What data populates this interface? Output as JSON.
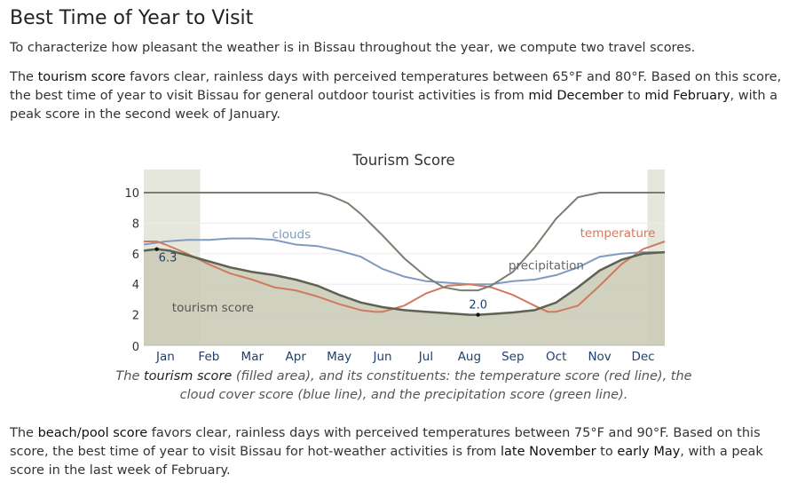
{
  "title": "Best Time of Year to Visit",
  "intro": "To characterize how pleasant the weather is in Bissau throughout the year, we compute two travel scores.",
  "tourism": {
    "p1": "The ",
    "term": "tourism score",
    "p2": " favors clear, rainless days with perceived temperatures between 65°F and 80°F. Based on this score, the best time of year to visit Bissau for general outdoor tourist activities is from ",
    "start": "mid December",
    "p3": " to ",
    "end": "mid February",
    "p4": ", with a peak score in the second week of January."
  },
  "caption": {
    "p1": "The ",
    "term": "tourism score",
    "p2": " (filled area), and its constituents: the temperature score (red line), the cloud cover score (blue line), and the precipitation score (green line)."
  },
  "beach": {
    "p1": "The ",
    "term": "beach/pool score",
    "p2": " favors clear, rainless days with perceived temperatures between 75°F and 90°F. Based on this score, the best time of year to visit Bissau for hot-weather activities is from ",
    "start": "late November",
    "p3": " to ",
    "end": "early May",
    "p4": ", with a peak score in the last week of February."
  },
  "chart_data": {
    "type": "area",
    "title": "Tourism Score",
    "xlabel": "",
    "ylabel": "",
    "ylim": [
      0,
      10
    ],
    "yticks": [
      0,
      2,
      4,
      6,
      8,
      10
    ],
    "x_range": [
      0,
      12
    ],
    "months": [
      "Jan",
      "Feb",
      "Mar",
      "Apr",
      "May",
      "Jun",
      "Jul",
      "Aug",
      "Sep",
      "Oct",
      "Nov",
      "Dec"
    ],
    "best_periods": [
      [
        0,
        1.3
      ],
      [
        11.6,
        12
      ]
    ],
    "colors": {
      "score_fill": "#c9c9b5",
      "score_line": "#5d6253",
      "temperature": "#d07a60",
      "clouds": "#7f9bbf",
      "precipitation": "#7a7e70",
      "best_band": "#e6e7dc"
    },
    "series": [
      {
        "name": "tourism score",
        "x": [
          0,
          0.3,
          0.6,
          1.0,
          1.5,
          2.0,
          2.5,
          3.0,
          3.5,
          4.0,
          4.5,
          5.0,
          5.5,
          6.0,
          6.5,
          7.0,
          7.5,
          7.7,
          8.0,
          8.5,
          9.0,
          9.5,
          10.0,
          10.5,
          11.0,
          11.5,
          12.0
        ],
        "y": [
          6.2,
          6.3,
          6.2,
          5.9,
          5.5,
          5.1,
          4.8,
          4.6,
          4.3,
          3.9,
          3.3,
          2.8,
          2.5,
          2.3,
          2.2,
          2.1,
          2.0,
          2.0,
          2.05,
          2.15,
          2.3,
          2.8,
          3.8,
          4.9,
          5.6,
          6.0,
          6.1
        ]
      },
      {
        "name": "temperature",
        "x": [
          0,
          0.3,
          0.5,
          1.0,
          1.5,
          2.0,
          2.5,
          3.0,
          3.5,
          4.0,
          4.5,
          5.0,
          5.3,
          5.5,
          6.0,
          6.5,
          7.0,
          7.5,
          8.0,
          8.5,
          9.0,
          9.3,
          9.5,
          10.0,
          10.5,
          11.0,
          11.5,
          12.0
        ],
        "y": [
          6.8,
          6.8,
          6.6,
          6.0,
          5.3,
          4.7,
          4.3,
          3.8,
          3.6,
          3.2,
          2.7,
          2.3,
          2.2,
          2.2,
          2.6,
          3.4,
          3.9,
          4.0,
          3.8,
          3.3,
          2.6,
          2.2,
          2.2,
          2.6,
          3.9,
          5.3,
          6.3,
          6.8
        ]
      },
      {
        "name": "clouds",
        "x": [
          0,
          0.5,
          1.0,
          1.5,
          2.0,
          2.5,
          3.0,
          3.5,
          4.0,
          4.5,
          5.0,
          5.5,
          6.0,
          6.5,
          7.0,
          7.5,
          8.0,
          8.5,
          9.0,
          9.5,
          10.0,
          10.5,
          11.0,
          11.5,
          12.0
        ],
        "y": [
          6.6,
          6.8,
          6.9,
          6.9,
          7.0,
          7.0,
          6.9,
          6.6,
          6.5,
          6.2,
          5.8,
          5.0,
          4.5,
          4.2,
          4.1,
          4.0,
          4.0,
          4.2,
          4.3,
          4.6,
          5.1,
          5.8,
          6.0,
          6.1,
          6.1
        ]
      },
      {
        "name": "precipitation",
        "x": [
          0,
          1.0,
          2.0,
          3.0,
          3.5,
          4.0,
          4.3,
          4.7,
          5.0,
          5.5,
          6.0,
          6.5,
          6.9,
          7.3,
          7.7,
          8.0,
          8.5,
          9.0,
          9.5,
          10.0,
          10.5,
          11.0,
          11.5,
          12.0
        ],
        "y": [
          10,
          10,
          10,
          10,
          10,
          10,
          9.8,
          9.3,
          8.6,
          7.2,
          5.7,
          4.5,
          3.8,
          3.6,
          3.6,
          3.9,
          4.8,
          6.4,
          8.3,
          9.7,
          10,
          10,
          10,
          10
        ]
      }
    ],
    "annotations": [
      {
        "text": "6.3",
        "x": 0.3,
        "y": 6.3
      },
      {
        "text": "2.0",
        "x": 7.7,
        "y": 2.0
      }
    ],
    "series_labels": [
      {
        "text": "clouds",
        "series": "clouds"
      },
      {
        "text": "precipitation",
        "series": "precipitation"
      },
      {
        "text": "temperature",
        "series": "temperature"
      },
      {
        "text": "tourism score",
        "series": "tourism score"
      }
    ]
  }
}
